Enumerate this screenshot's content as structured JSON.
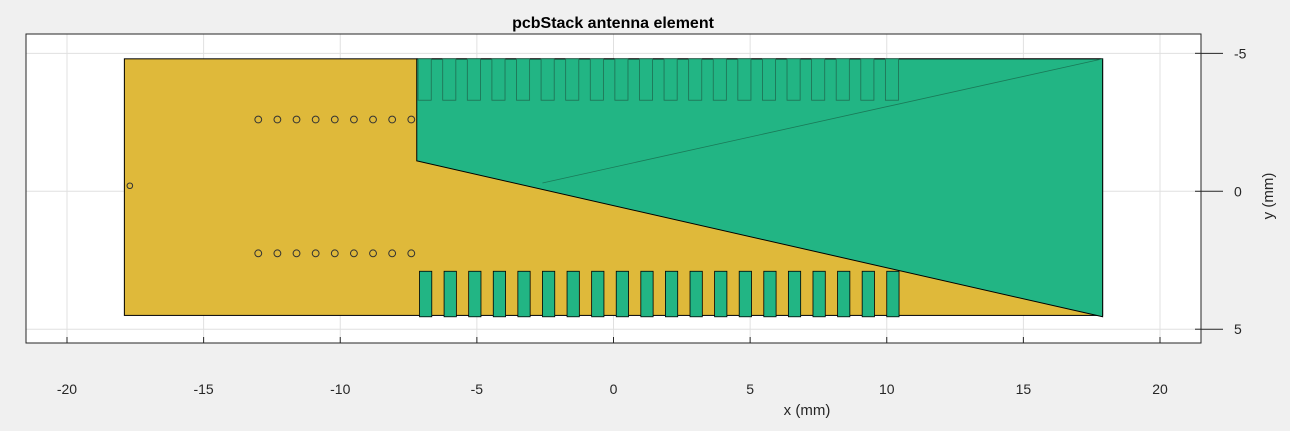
{
  "chart_data": {
    "type": "polygon-layout",
    "title": "pcbStack antenna element",
    "xlabel": "x (mm)",
    "ylabel": "y (mm)",
    "xlim": [
      -21.5,
      21.5
    ],
    "ylim": [
      -5.7,
      5.5
    ],
    "y_direction": "reverse",
    "y_axis_location": "right",
    "grid": true,
    "x_ticks": [
      -20,
      -15,
      -10,
      -5,
      0,
      5,
      10,
      15,
      20
    ],
    "y_ticks": [
      -5,
      0,
      5
    ],
    "colors": {
      "substrate": "#dfb93a",
      "metal": "#22b584",
      "axes_background": "#ffffff",
      "figure_background": "#f0f0f0",
      "grid": "#e0e0e0",
      "edge": "#000000"
    },
    "substrate": {
      "x": [
        -17.9,
        17.9
      ],
      "y": [
        -4.8,
        4.5
      ]
    },
    "metal_patch": [
      [
        -7.2,
        -4.8
      ],
      [
        17.9,
        -4.8
      ],
      [
        17.9,
        4.55
      ],
      [
        -7.2,
        -1.1
      ]
    ],
    "diagonal_line": [
      [
        -2.6,
        -0.3
      ],
      [
        17.9,
        -4.8
      ]
    ],
    "top_slots": {
      "x_start": -7.15,
      "pitch": 0.9,
      "count": 20,
      "width": 0.48,
      "y": [
        -4.8,
        -3.3
      ]
    },
    "bottom_stubs": {
      "x_start": -7.1,
      "pitch": 0.9,
      "count": 20,
      "width": 0.45,
      "y": [
        2.9,
        4.55
      ]
    },
    "vias_top": {
      "x": [
        -13.0,
        -12.3,
        -11.6,
        -10.9,
        -10.2,
        -9.5,
        -8.8,
        -8.1,
        -7.4
      ],
      "y": -2.6
    },
    "vias_bottom": {
      "x": [
        -13.0,
        -12.3,
        -11.6,
        -10.9,
        -10.2,
        -9.5,
        -8.8,
        -8.1,
        -7.4
      ],
      "y": 2.25
    },
    "feed_via": {
      "x": -17.7,
      "y": -0.2
    }
  }
}
